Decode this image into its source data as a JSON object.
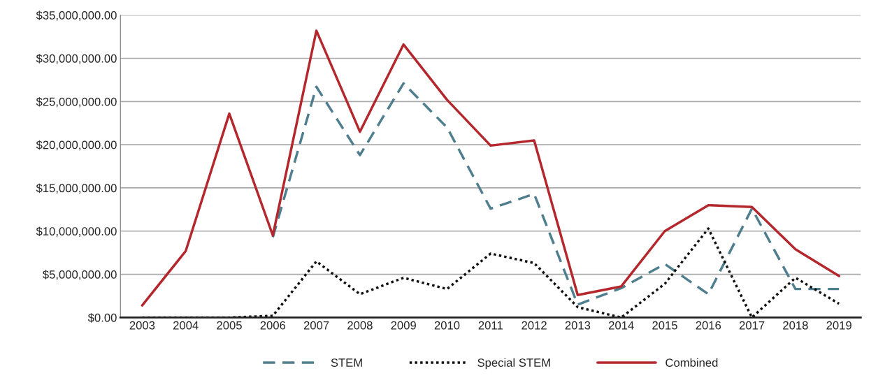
{
  "chart_data": {
    "type": "line",
    "categories": [
      "2003",
      "2004",
      "2005",
      "2006",
      "2007",
      "2008",
      "2009",
      "2010",
      "2011",
      "2012",
      "2013",
      "2014",
      "2015",
      "2016",
      "2017",
      "2018",
      "2019"
    ],
    "series": [
      {
        "name": "STEM",
        "color": "#4f7f8f",
        "line_style": "dashed",
        "values": [
          null,
          null,
          null,
          9300000,
          26700000,
          18800000,
          27100000,
          22000000,
          12600000,
          14300000,
          1500000,
          3400000,
          6200000,
          2700000,
          12600000,
          3300000,
          3300000
        ]
      },
      {
        "name": "Special STEM",
        "color": "#111111",
        "line_style": "dotted",
        "values": [
          0,
          0,
          0,
          200000,
          6500000,
          2700000,
          4600000,
          3300000,
          7400000,
          6300000,
          1200000,
          0,
          3900000,
          10300000,
          0,
          4600000,
          1600000
        ]
      },
      {
        "name": "Combined",
        "color": "#b3272d",
        "line_style": "solid",
        "values": [
          1400000,
          7700000,
          23600000,
          9500000,
          33200000,
          21500000,
          31600000,
          25200000,
          19900000,
          20500000,
          2600000,
          3600000,
          10000000,
          13000000,
          12800000,
          7900000,
          4800000
        ]
      }
    ],
    "ylim": [
      0,
      35000000
    ],
    "yticks": [
      {
        "value": 0,
        "label": "$0.00"
      },
      {
        "value": 5000000,
        "label": "$5,000,000.00"
      },
      {
        "value": 10000000,
        "label": "$10,000,000.00"
      },
      {
        "value": 15000000,
        "label": "$15,000,000.00"
      },
      {
        "value": 20000000,
        "label": "$20,000,000.00"
      },
      {
        "value": 25000000,
        "label": "$25,000,000.00"
      },
      {
        "value": 30000000,
        "label": "$30,000,000.00"
      },
      {
        "value": 35000000,
        "label": "$35,000,000.00"
      }
    ],
    "grid": "y",
    "legend": "bottom",
    "marker": "none"
  }
}
